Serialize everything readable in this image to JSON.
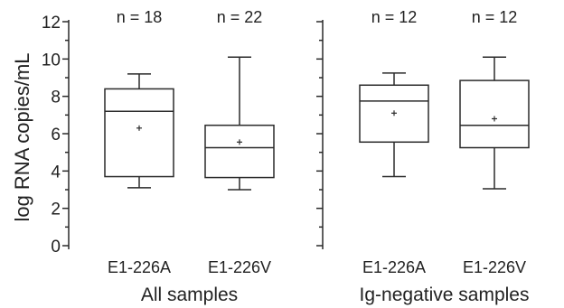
{
  "chart_data": {
    "type": "box",
    "ylabel": "log RNA copies/mL",
    "ylim": [
      0,
      12
    ],
    "yticks": [
      "0",
      "2",
      "4",
      "6",
      "8",
      "10",
      "12"
    ],
    "panels": [
      {
        "group_label": "All samples",
        "boxes": [
          {
            "category": "E1-226A",
            "n_label": "n = 18",
            "min": 3.1,
            "q1": 3.7,
            "median": 7.2,
            "q3": 8.4,
            "max": 9.2,
            "mean": 6.3
          },
          {
            "category": "E1-226V",
            "n_label": "n = 22",
            "min": 3.0,
            "q1": 3.65,
            "median": 5.25,
            "q3": 6.45,
            "max": 10.1,
            "mean": 5.55
          }
        ]
      },
      {
        "group_label": "Ig-negative samples",
        "boxes": [
          {
            "category": "E1-226A",
            "n_label": "n = 12",
            "min": 3.7,
            "q1": 5.55,
            "median": 7.75,
            "q3": 8.6,
            "max": 9.25,
            "mean": 7.1
          },
          {
            "category": "E1-226V",
            "n_label": "n = 12",
            "min": 3.05,
            "q1": 5.25,
            "median": 6.45,
            "q3": 8.85,
            "max": 10.1,
            "mean": 6.8
          }
        ]
      }
    ]
  }
}
